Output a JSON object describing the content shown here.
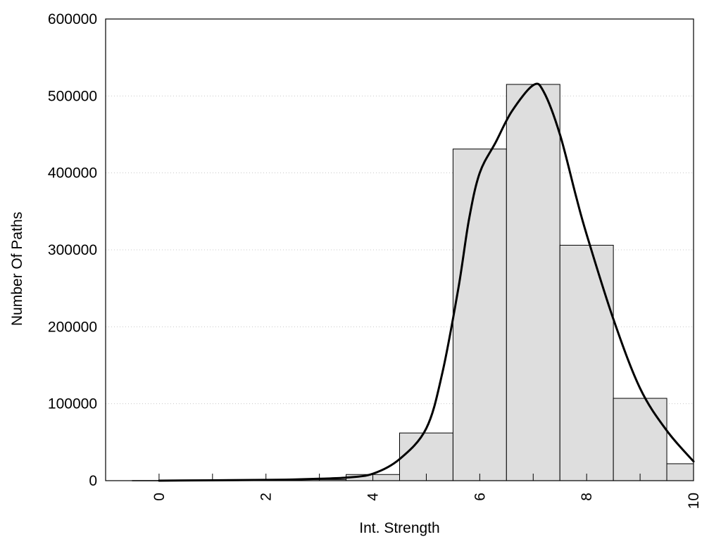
{
  "chart_data": {
    "type": "bar",
    "title": "",
    "xlabel": "Int. Strength",
    "ylabel": "Number Of Paths",
    "xlim": [
      -1,
      10
    ],
    "ylim": [
      0,
      600000
    ],
    "x_ticks": [
      0,
      2,
      4,
      6,
      8,
      10
    ],
    "y_ticks": [
      0,
      100000,
      200000,
      300000,
      400000,
      500000,
      600000
    ],
    "grid": "dotted horizontal",
    "bar_color": "#dedede",
    "bar_edge_color": "#000000",
    "curve_color": "#000000",
    "bars": {
      "x": [
        0,
        1,
        2,
        3,
        4,
        5,
        6,
        7,
        8,
        9,
        10
      ],
      "values": [
        200,
        400,
        800,
        1500,
        8000,
        62000,
        431000,
        515000,
        306000,
        107000,
        22000
      ]
    },
    "fit_curve": {
      "x": [
        0,
        1,
        2,
        2.5,
        3,
        3.5,
        4,
        4.5,
        5,
        5.3,
        5.6,
        5.8,
        6,
        6.3,
        6.6,
        7,
        7.2,
        7.5,
        7.8,
        8,
        8.5,
        9,
        9.5,
        10
      ],
      "y": [
        0,
        500,
        1000,
        1500,
        2500,
        4000,
        9000,
        28000,
        68000,
        140000,
        250000,
        340000,
        400000,
        440000,
        480000,
        514000,
        505000,
        450000,
        370000,
        320000,
        210000,
        120000,
        65000,
        25000
      ]
    }
  }
}
